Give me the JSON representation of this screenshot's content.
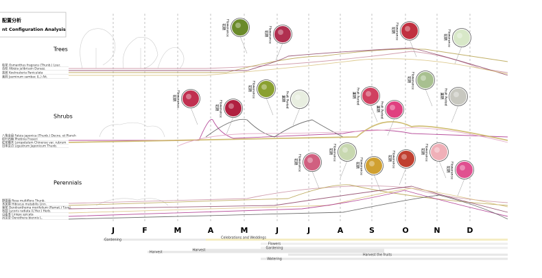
{
  "title": {
    "zh": "配置分析",
    "en": "nt Configuration Analysis"
  },
  "groups": [
    {
      "name": "Trees",
      "species": [
        "桂花 Osmanthus fragrans (Thunb.) Lour.",
        "合欢 Albizia julibrissin Durazz.",
        "栾树 Koelreuteria Paniculata",
        "茉莉 Jasminum sambac (L.) Ait."
      ]
    },
    {
      "name": "Shrubs",
      "species": [
        "八角金盘 Fatsia japonica (Thunb.) Decne. et Planch",
        "红叶石楠 Photinia Fraseri",
        "红花檵木 Loropetalum Chinense var. rubrum",
        "日本女贞 Ligustrum Japonicum Thunb."
      ]
    },
    {
      "name": "Perennials",
      "species": [
        "野蔷薇 Rosa multiflora Thunb.",
        "木芙蓉 Hibiscus mutabilis Linn.",
        "菊花 Dendranthema morifolium (Ramat.) Tzvel.",
        "石蒜 Lycoris radiata (L'Her.) Herb.",
        "山麦冬 Liriope spicata",
        "月见草 Oenothera biennis L."
      ]
    }
  ],
  "months": [
    "J",
    "F",
    "M",
    "A",
    "M",
    "J",
    "J",
    "A",
    "S",
    "O",
    "N",
    "D"
  ],
  "activities": [
    "Gardening",
    "Celebrations and Weddings",
    "Flowers",
    "Gardening",
    "Harvest",
    "Harvest",
    "Harvest the fruits",
    "Watering"
  ],
  "callouts": [
    {
      "zh": "花期",
      "en": "Flowerance"
    },
    {
      "zh": "花期",
      "en": "Flowerance"
    },
    {
      "zh": "花期",
      "en": "Flowerance"
    },
    {
      "zh": "花期",
      "en": "Flowerance"
    },
    {
      "zh": "花期",
      "en": "Flowerance"
    },
    {
      "zh": "花期",
      "en": "Flowerance"
    },
    {
      "zh": "花期",
      "en": "Flowerance"
    },
    {
      "zh": "果期",
      "en": "Fruit Period"
    },
    {
      "zh": "果期",
      "en": "Fruit Period"
    },
    {
      "zh": "果期",
      "en": "Fruit Period"
    },
    {
      "zh": "花期",
      "en": "Flowerance"
    },
    {
      "zh": "果期",
      "en": "Fruit Period"
    },
    {
      "zh": "花期",
      "en": "Flowerance"
    },
    {
      "zh": "花期",
      "en": "Flowerance"
    },
    {
      "zh": "花期",
      "en": "Flowerance"
    },
    {
      "zh": "花期",
      "en": "Flowerance"
    },
    {
      "zh": "花期",
      "en": "Flowerance"
    },
    {
      "zh": "花期",
      "en": "Flowerance"
    }
  ]
}
